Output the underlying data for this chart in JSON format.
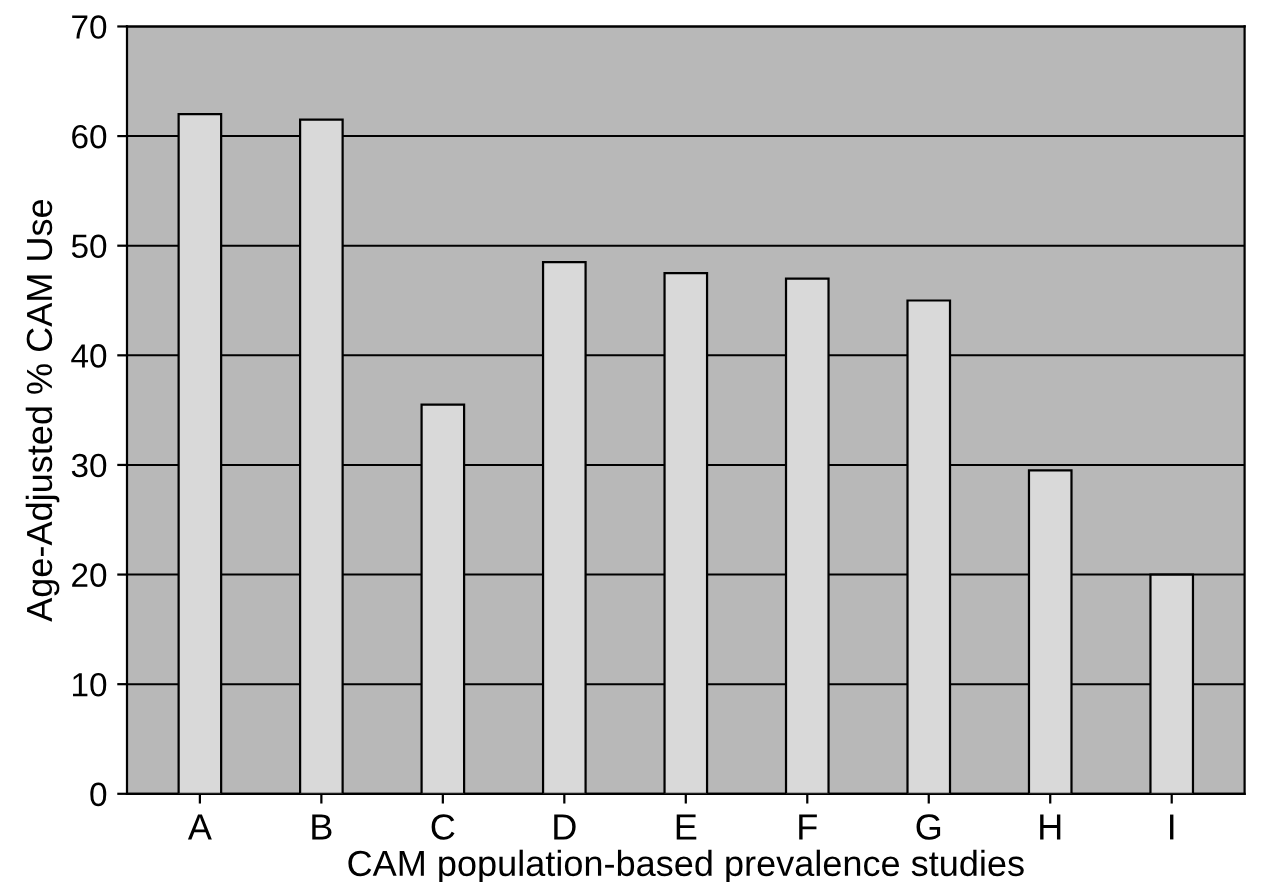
{
  "chart_data": {
    "type": "bar",
    "xlabel": "CAM population-based prevalence studies",
    "ylabel": "Age-Adjusted % CAM Use",
    "categories": [
      "A",
      "B",
      "C",
      "D",
      "E",
      "F",
      "G",
      "H",
      "I"
    ],
    "values": [
      62,
      61.5,
      35.5,
      48.5,
      47.5,
      47,
      45,
      29.5,
      20
    ],
    "color": "#d9d9d9",
    "ylim": [
      0,
      70
    ],
    "yticks": [
      0,
      10,
      20,
      30,
      40,
      50,
      60,
      70
    ],
    "grid": "y"
  }
}
